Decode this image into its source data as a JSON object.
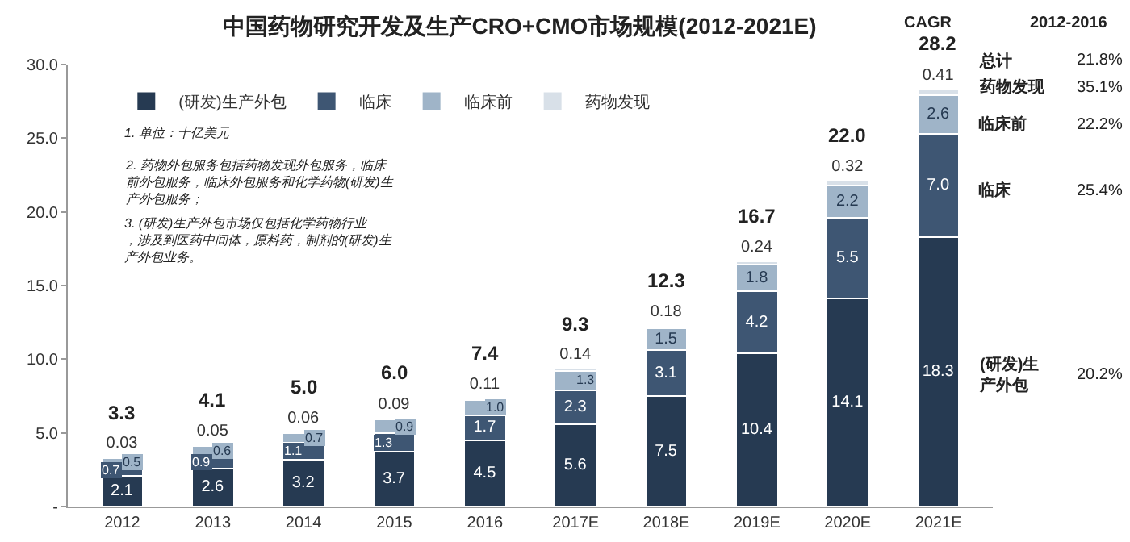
{
  "chart_data": {
    "type": "bar",
    "stacked": true,
    "title": "中国药物研究开发及生产CRO+CMO市场规模(2012-2021E)",
    "categories": [
      "2012",
      "2013",
      "2014",
      "2015",
      "2016",
      "2017E",
      "2018E",
      "2019E",
      "2020E",
      "2021E"
    ],
    "series": [
      {
        "name": "(研发)生产外包",
        "color": "#263a52",
        "values": [
          2.1,
          2.6,
          3.2,
          3.7,
          4.5,
          5.6,
          7.5,
          10.4,
          14.1,
          18.3
        ],
        "value_labels": [
          "2.1",
          "2.6",
          "3.2",
          "3.7",
          "4.5",
          "5.6",
          "7.5",
          "10.4",
          "14.1",
          "18.3"
        ]
      },
      {
        "name": "临床",
        "color": "#3e5673",
        "values": [
          0.7,
          0.9,
          1.1,
          1.3,
          1.7,
          2.3,
          3.1,
          4.2,
          5.5,
          7.0
        ],
        "value_labels": [
          "0.7",
          "0.9",
          "1.1",
          "1.3",
          "1.7",
          "2.3",
          "3.1",
          "4.2",
          "5.5",
          "7.0"
        ]
      },
      {
        "name": "临床前",
        "color": "#9fb4c8",
        "values": [
          0.5,
          0.6,
          0.7,
          0.9,
          1.0,
          1.3,
          1.5,
          1.8,
          2.2,
          2.6
        ],
        "value_labels": [
          "0.5",
          "0.6",
          "0.7",
          "0.9",
          "1.0",
          "1.3",
          "1.5",
          "1.8",
          "2.2",
          "2.6"
        ]
      },
      {
        "name": "药物发现",
        "color": "#d8e0e8",
        "values": [
          0.03,
          0.05,
          0.06,
          0.09,
          0.11,
          0.14,
          0.18,
          0.24,
          0.32,
          0.41
        ],
        "value_labels": [
          "0.03",
          "0.05",
          "0.06",
          "0.09",
          "0.11",
          "0.14",
          "0.18",
          "0.24",
          "0.32",
          "0.41"
        ]
      }
    ],
    "totals": [
      "3.3",
      "4.1",
      "5.0",
      "6.0",
      "7.4",
      "9.3",
      "12.3",
      "16.7",
      "22.0",
      "28.2"
    ],
    "ylim": [
      0,
      30
    ],
    "yticks": [
      {
        "value": 0,
        "label": "-"
      },
      {
        "value": 5,
        "label": "5.0"
      },
      {
        "value": 10,
        "label": "10.0"
      },
      {
        "value": 15,
        "label": "15.0"
      },
      {
        "value": 20,
        "label": "20.0"
      },
      {
        "value": 25,
        "label": "25.0"
      },
      {
        "value": 30,
        "label": "30.0"
      }
    ],
    "grid": false,
    "legend": "top left",
    "annotations": [
      "1. 单位：十亿美元",
      "2. 药物外包服务包括药物发现外包服务，临床前外包服务，临床外包服务和化学药物(研发)生产外包服务；",
      "3. (研发)生产外包市场仅包括化学药物行业，涉及到医药中间体，原料药，制剂的(研发)生产外包业务。",
      "CAGR",
      "2012-2016",
      "总计",
      "21.8%",
      "药物发现",
      "35.1%",
      "临床前",
      "22.2%",
      "临床",
      "25.4%",
      "(研发)生产外包",
      "20.2%"
    ]
  }
}
